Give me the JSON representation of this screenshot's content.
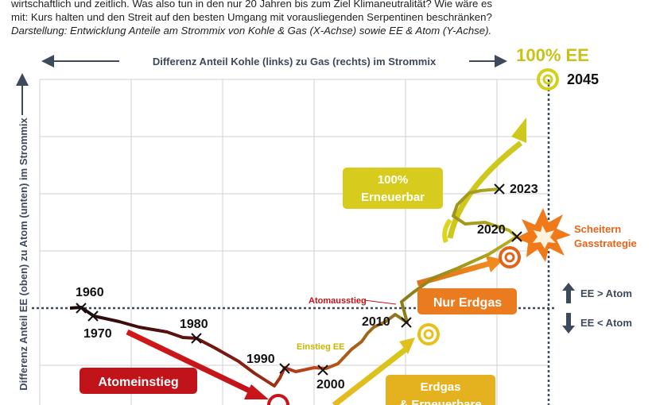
{
  "intro": {
    "line1": "wirtschaftlich und zeitlich. Was also tun in den nur 20 Jahren bis zum Ziel Klimaneutralität? Wie wäre es",
    "line2": "mit: Kurs halten und den Streit auf den besten Umgang mit vorausliegenden Serpentinen beschränken?",
    "line3": "Darstellung: Entwicklung Anteile am Strommix von Kohle & Gas (X-Achse) sowie EE & Atom (Y-Achse)."
  },
  "chart_data": {
    "type": "line",
    "title": "Entwicklung Anteile am Strommix",
    "xlabel": "Differenz Anteil Kohle (links) zu Gas (rechts) im Strommix",
    "ylabel": "Differenz Anteil EE (oben) zu Atom (unten) im Strommix",
    "grid": true,
    "year_markers": [
      {
        "year": "1960",
        "x": 0,
        "y": 0
      },
      {
        "year": "1970",
        "x": 0.5,
        "y": -0.3
      },
      {
        "year": "1980",
        "x": 3.8,
        "y": -1.2
      },
      {
        "year": "1990",
        "x": 6.8,
        "y": -2.3
      },
      {
        "year": "2000",
        "x": 8.4,
        "y": -2.3
      },
      {
        "year": "2010",
        "x": 11.1,
        "y": -0.6
      },
      {
        "year": "2020",
        "x": 14.3,
        "y": 2.7
      },
      {
        "year": "2023",
        "x": 13.6,
        "y": 4.3
      }
    ],
    "target": {
      "label": "100% EE",
      "year": "2045"
    },
    "annotations": {
      "atomeinstieg": "Atomeinstieg",
      "einstieg_ee": "Einstieg EE",
      "atomausstieg": "Atomausstieg",
      "nur_erdgas": "Nur Erdgas",
      "erdgas_ee_1": "Erdgas",
      "erdgas_ee_2": "& Erneuerbare",
      "erneuerbar_1": "100%",
      "erneuerbar_2": "Erneuerbar",
      "scheitern_1": "Scheitern",
      "scheitern_2": "Gasstrategie",
      "ee_gt_atom": "EE > Atom",
      "ee_lt_atom": "EE < Atom"
    }
  }
}
